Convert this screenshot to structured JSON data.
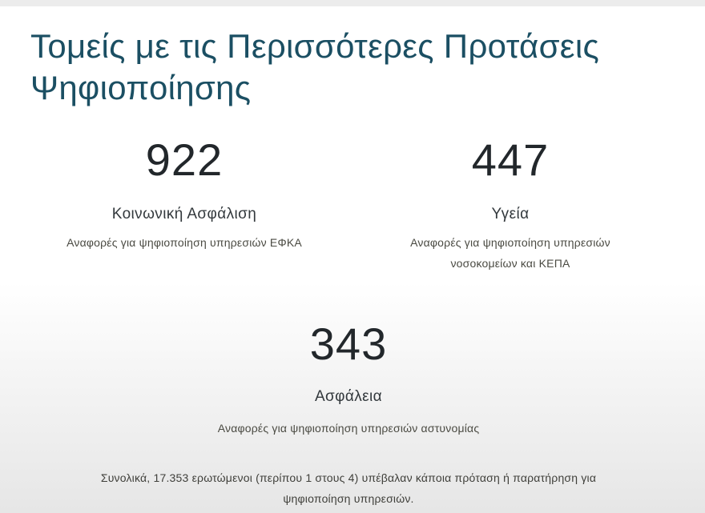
{
  "page": {
    "title_line1": "Τομείς με τις Περισσότερες Προτάσεις",
    "title_line2": "Ψηφιοποίησης"
  },
  "stats": [
    {
      "number": "922",
      "label": "Κοινωνική Ασφάλιση",
      "desc_line1": "Αναφορές για ψηφιοποίηση υπηρεσιών ΕΦΚΑ",
      "desc_line2": ""
    },
    {
      "number": "447",
      "label": "Υγεία",
      "desc_line1": "Αναφορές για ψηφιοποίηση υπηρεσιών",
      "desc_line2": "νοσοκομείων και ΚΕΠΑ"
    },
    {
      "number": "343",
      "label": "Ασφάλεια",
      "desc_line1": "Αναφορές για ψηφιοποίηση υπηρεσιών αστυνομίας",
      "desc_line2": ""
    }
  ],
  "summary": {
    "line1": "Συνολικά, 17.353 ερωτώμενοι (περίπου 1 στους 4) υπέβαλαν κάποια πρόταση ή παρατήρηση για",
    "line2": "ψηφιοποίηση υπηρεσιών."
  }
}
